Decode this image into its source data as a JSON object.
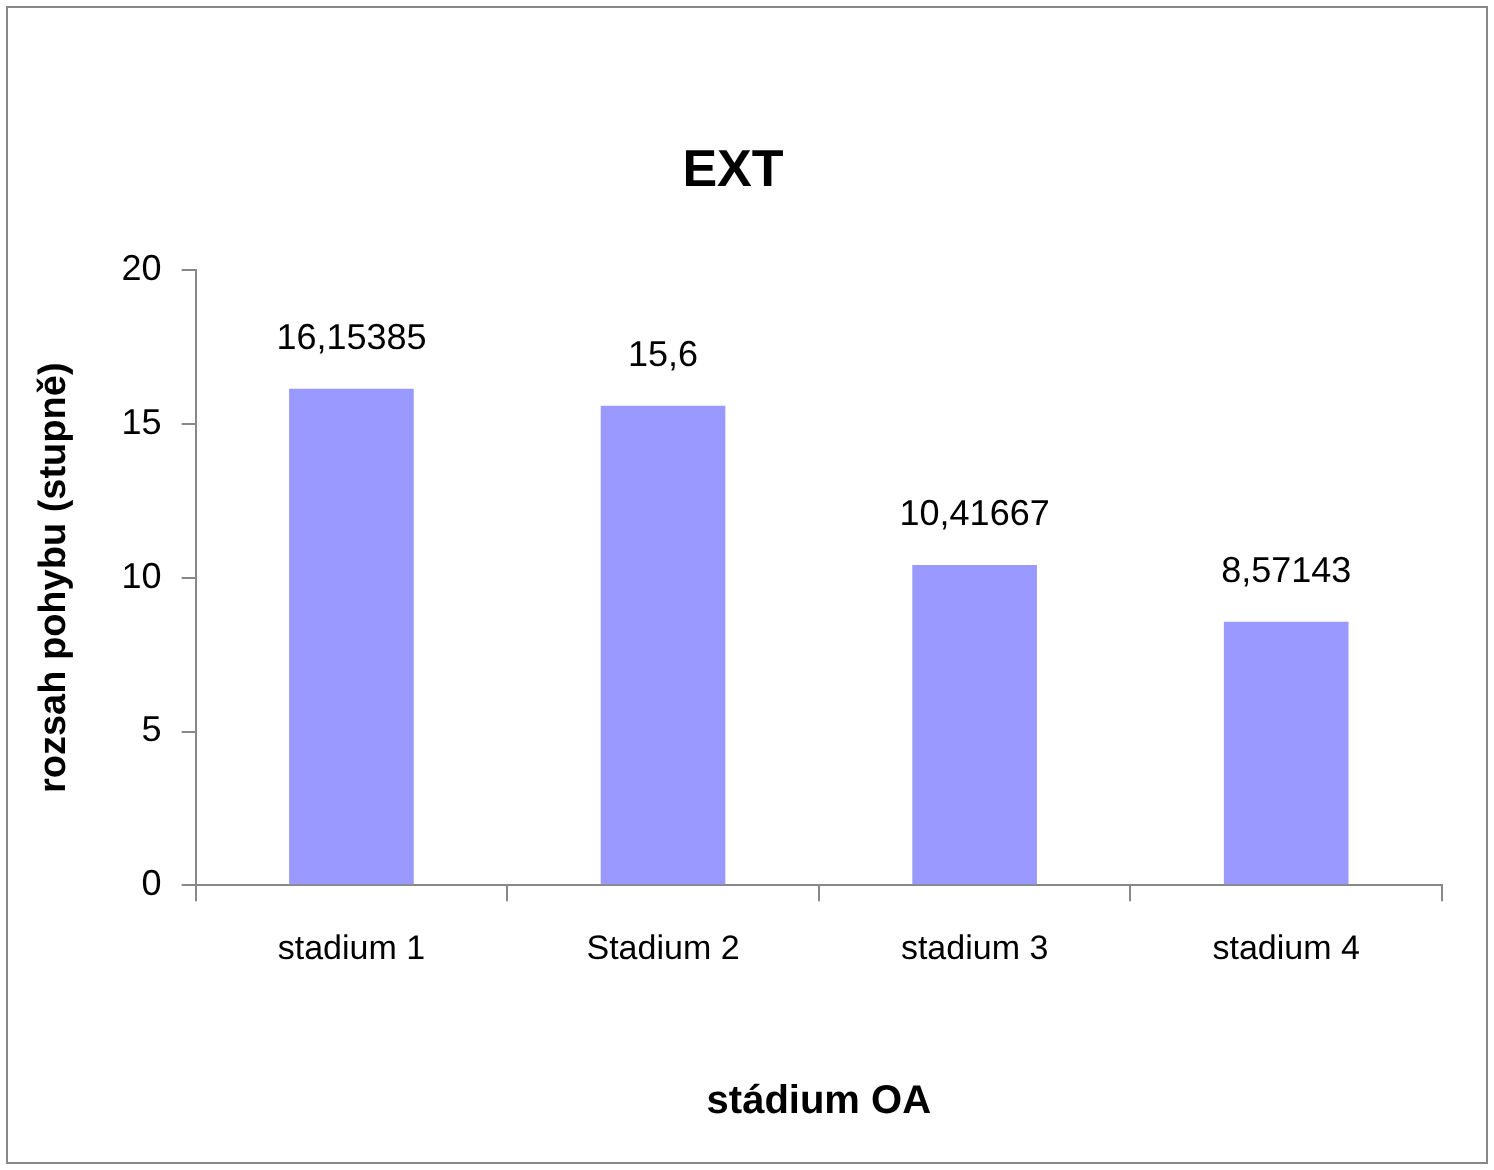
{
  "chart_data": {
    "type": "bar",
    "title": "EXT",
    "xlabel": "stádium OA",
    "ylabel": "rozsah pohybu (stupně)",
    "categories": [
      "stadium 1",
      "Stadium 2",
      "stadium 3",
      "stadium 4"
    ],
    "values": [
      16.15385,
      15.6,
      10.41667,
      8.57143
    ],
    "value_labels": [
      "16,15385",
      "15,6",
      "10,41667",
      "8,57143"
    ],
    "color": "#9999ff",
    "ylim": [
      0,
      20
    ],
    "yticks": [
      0,
      5,
      10,
      15,
      20
    ],
    "grid": false,
    "legend": false
  }
}
